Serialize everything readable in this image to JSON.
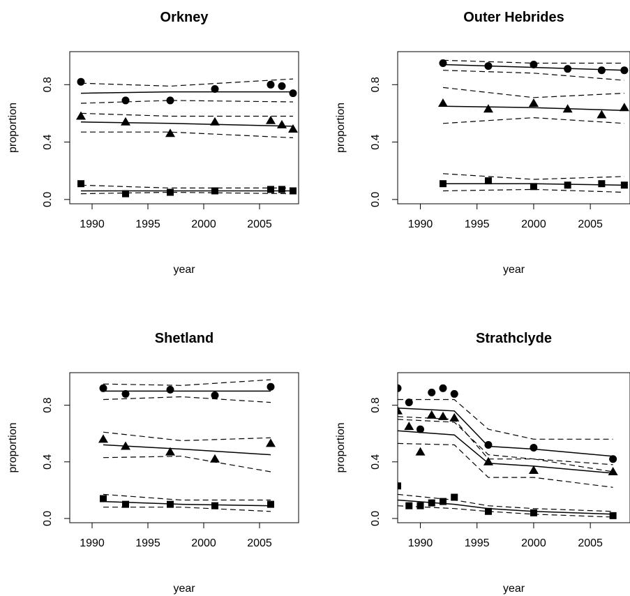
{
  "chart_data": [
    {
      "type": "scatter",
      "title": "Orkney",
      "xlabel": "year",
      "ylabel": "proportion",
      "xlim": [
        1988,
        2008.5
      ],
      "ylim": [
        -0.03,
        1.03
      ],
      "xticks": [
        1990,
        1995,
        2000,
        2005
      ],
      "yticks": [
        "0.0",
        "0.4",
        "0.8"
      ],
      "series": [
        {
          "marker": "circle",
          "x": [
            1989,
            1993,
            1997,
            2001,
            2006,
            2007,
            2008
          ],
          "y": [
            0.82,
            0.69,
            0.69,
            0.77,
            0.8,
            0.79,
            0.74
          ]
        },
        {
          "marker": "triangle",
          "x": [
            1989,
            1993,
            1997,
            2001,
            2006,
            2007,
            2008
          ],
          "y": [
            0.58,
            0.54,
            0.46,
            0.54,
            0.55,
            0.52,
            0.49
          ]
        },
        {
          "marker": "square",
          "x": [
            1989,
            1993,
            1997,
            2001,
            2006,
            2007,
            2008
          ],
          "y": [
            0.11,
            0.04,
            0.05,
            0.06,
            0.07,
            0.07,
            0.06
          ]
        }
      ],
      "fits": [
        {
          "x": [
            1989,
            1997,
            2008
          ],
          "fit": [
            0.74,
            0.75,
            0.75
          ],
          "lower": [
            0.67,
            0.69,
            0.68
          ],
          "upper": [
            0.81,
            0.79,
            0.84
          ]
        },
        {
          "x": [
            1989,
            1997,
            2008
          ],
          "fit": [
            0.54,
            0.53,
            0.51
          ],
          "lower": [
            0.47,
            0.47,
            0.43
          ],
          "upper": [
            0.6,
            0.58,
            0.58
          ]
        },
        {
          "x": [
            1989,
            1997,
            2008
          ],
          "fit": [
            0.06,
            0.06,
            0.06
          ],
          "lower": [
            0.04,
            0.05,
            0.04
          ],
          "upper": [
            0.1,
            0.08,
            0.08
          ]
        }
      ]
    },
    {
      "type": "scatter",
      "title": "Outer Hebrides",
      "xlabel": "year",
      "ylabel": "proportion",
      "xlim": [
        1988,
        2008.5
      ],
      "ylim": [
        -0.03,
        1.03
      ],
      "xticks": [
        1990,
        1995,
        2000,
        2005
      ],
      "yticks": [
        "0.0",
        "0.4",
        "0.8"
      ],
      "series": [
        {
          "marker": "circle",
          "x": [
            1992,
            1996,
            2000,
            2003,
            2006,
            2008
          ],
          "y": [
            0.95,
            0.93,
            0.94,
            0.91,
            0.9,
            0.9
          ]
        },
        {
          "marker": "triangle",
          "x": [
            1992,
            1996,
            2000,
            2003,
            2006,
            2008
          ],
          "y": [
            0.67,
            0.63,
            0.67,
            0.63,
            0.59,
            0.64
          ]
        },
        {
          "marker": "square",
          "x": [
            1992,
            1996,
            2000,
            2003,
            2006,
            2008
          ],
          "y": [
            0.11,
            0.13,
            0.09,
            0.1,
            0.11,
            0.1
          ]
        }
      ],
      "fits": [
        {
          "x": [
            1992,
            2000,
            2008
          ],
          "fit": [
            0.94,
            0.92,
            0.9
          ],
          "lower": [
            0.9,
            0.88,
            0.83
          ],
          "upper": [
            0.97,
            0.95,
            0.95
          ]
        },
        {
          "x": [
            1992,
            2000,
            2008
          ],
          "fit": [
            0.65,
            0.64,
            0.62
          ],
          "lower": [
            0.53,
            0.57,
            0.53
          ],
          "upper": [
            0.78,
            0.71,
            0.74
          ]
        },
        {
          "x": [
            1992,
            2000,
            2008
          ],
          "fit": [
            0.11,
            0.11,
            0.1
          ],
          "lower": [
            0.06,
            0.07,
            0.05
          ],
          "upper": [
            0.18,
            0.14,
            0.16
          ]
        }
      ]
    },
    {
      "type": "scatter",
      "title": "Shetland",
      "xlabel": "year",
      "ylabel": "proportion",
      "xlim": [
        1988,
        2008.5
      ],
      "ylim": [
        -0.03,
        1.03
      ],
      "xticks": [
        1990,
        1995,
        2000,
        2005
      ],
      "yticks": [
        "0.0",
        "0.4",
        "0.8"
      ],
      "series": [
        {
          "marker": "circle",
          "x": [
            1991,
            1993,
            1997,
            2001,
            2006
          ],
          "y": [
            0.92,
            0.88,
            0.91,
            0.87,
            0.93
          ]
        },
        {
          "marker": "triangle",
          "x": [
            1991,
            1993,
            1997,
            2001,
            2006
          ],
          "y": [
            0.56,
            0.51,
            0.47,
            0.42,
            0.53
          ]
        },
        {
          "marker": "square",
          "x": [
            1991,
            1993,
            1997,
            2001,
            2006
          ],
          "y": [
            0.14,
            0.1,
            0.1,
            0.09,
            0.1
          ]
        }
      ],
      "fits": [
        {
          "x": [
            1991,
            1998,
            2006
          ],
          "fit": [
            0.9,
            0.9,
            0.9
          ],
          "lower": [
            0.84,
            0.86,
            0.82
          ],
          "upper": [
            0.95,
            0.94,
            0.98
          ]
        },
        {
          "x": [
            1991,
            1998,
            2006
          ],
          "fit": [
            0.52,
            0.49,
            0.45
          ],
          "lower": [
            0.43,
            0.44,
            0.33
          ],
          "upper": [
            0.61,
            0.55,
            0.57
          ]
        },
        {
          "x": [
            1991,
            1998,
            2006
          ],
          "fit": [
            0.12,
            0.1,
            0.09
          ],
          "lower": [
            0.08,
            0.08,
            0.05
          ],
          "upper": [
            0.17,
            0.13,
            0.13
          ]
        }
      ]
    },
    {
      "type": "scatter",
      "title": "Strathclyde",
      "xlabel": "year",
      "ylabel": "proportion",
      "xlim": [
        1988,
        2008.5
      ],
      "ylim": [
        -0.03,
        1.03
      ],
      "xticks": [
        1990,
        1995,
        2000,
        2005
      ],
      "yticks": [
        "0.0",
        "0.4",
        "0.8"
      ],
      "series": [
        {
          "marker": "circle",
          "x": [
            1988,
            1989,
            1990,
            1991,
            1992,
            1993,
            1996,
            2000,
            2007
          ],
          "y": [
            0.92,
            0.82,
            0.63,
            0.89,
            0.92,
            0.88,
            0.52,
            0.5,
            0.42
          ]
        },
        {
          "marker": "triangle",
          "x": [
            1988,
            1989,
            1990,
            1991,
            1992,
            1993,
            1996,
            2000,
            2007
          ],
          "y": [
            0.76,
            0.65,
            0.47,
            0.73,
            0.72,
            0.71,
            0.4,
            0.34,
            0.33
          ]
        },
        {
          "marker": "square",
          "x": [
            1988,
            1989,
            1990,
            1991,
            1992,
            1993,
            1996,
            2000,
            2007
          ],
          "y": [
            0.23,
            0.09,
            0.09,
            0.11,
            0.12,
            0.15,
            0.05,
            0.04,
            0.02
          ]
        }
      ],
      "fits": [
        {
          "x": [
            1988,
            1993,
            1996,
            2000,
            2007
          ],
          "fit": [
            0.78,
            0.76,
            0.51,
            0.49,
            0.44
          ],
          "lower": [
            0.72,
            0.7,
            0.42,
            0.42,
            0.33
          ],
          "upper": [
            0.84,
            0.84,
            0.63,
            0.56,
            0.56
          ]
        },
        {
          "x": [
            1988,
            1993,
            1996,
            2000,
            2007
          ],
          "fit": [
            0.62,
            0.59,
            0.39,
            0.37,
            0.32
          ],
          "lower": [
            0.53,
            0.52,
            0.29,
            0.29,
            0.22
          ],
          "upper": [
            0.7,
            0.68,
            0.45,
            0.42,
            0.38
          ]
        },
        {
          "x": [
            1988,
            1993,
            1996,
            2000,
            2007
          ],
          "fit": [
            0.13,
            0.1,
            0.07,
            0.05,
            0.03
          ],
          "lower": [
            0.09,
            0.07,
            0.05,
            0.03,
            0.01
          ],
          "upper": [
            0.17,
            0.13,
            0.09,
            0.07,
            0.05
          ]
        }
      ]
    }
  ]
}
